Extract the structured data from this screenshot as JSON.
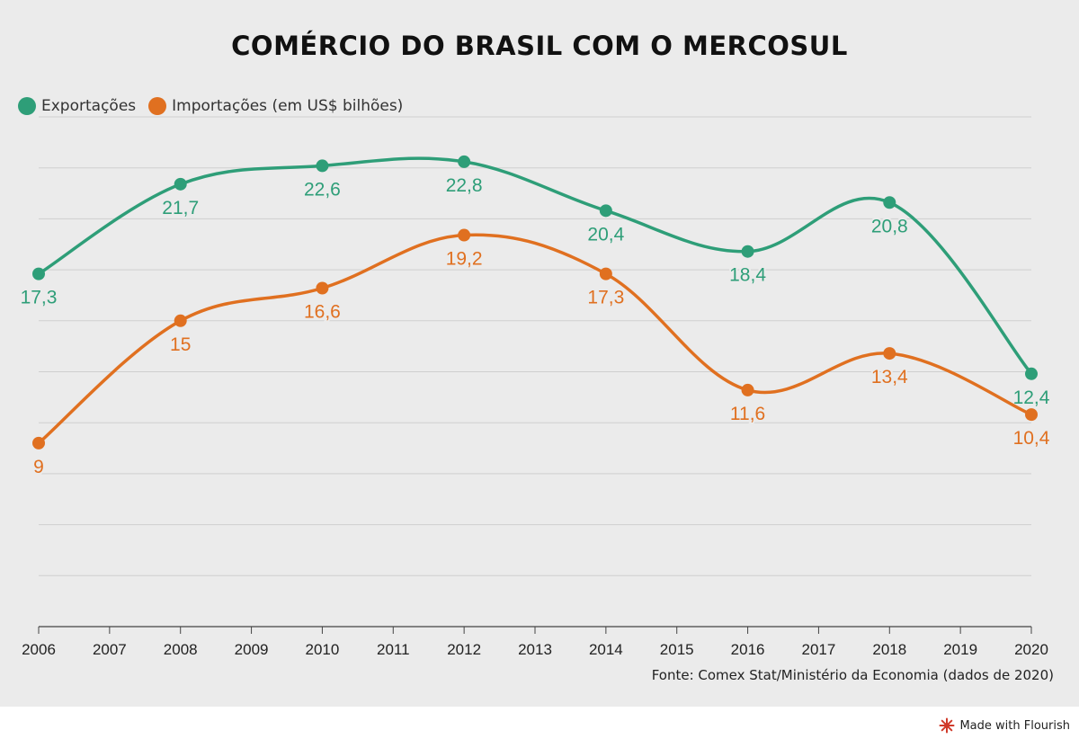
{
  "title": "COMÉRCIO DO BRASIL COM O MERCOSUL",
  "legend": {
    "exportacoes": "Exportações",
    "importacoes": "Importações (em US$ bilhões)"
  },
  "source": "Fonte: Comex Stat/Ministério da Economia (dados de 2020)",
  "footer": {
    "made_with": "Made with Flourish"
  },
  "colors": {
    "exportacoes": "#2e9e78",
    "importacoes": "#e07020",
    "grid": "#cfcfcf",
    "axis": "#444444",
    "background": "#ebebeb"
  },
  "chart_data": {
    "type": "line",
    "title": "COMÉRCIO DO BRASIL COM O MERCOSUL",
    "x_ticks": [
      "2006",
      "2007",
      "2008",
      "2009",
      "2010",
      "2011",
      "2012",
      "2013",
      "2014",
      "2015",
      "2016",
      "2017",
      "2018",
      "2019",
      "2020"
    ],
    "ylim": [
      0,
      25
    ],
    "grid": true,
    "legend_position": "top-left",
    "series": [
      {
        "key": "exportacoes",
        "name": "Exportações",
        "x": [
          2006,
          2008,
          2010,
          2012,
          2014,
          2016,
          2018,
          2020
        ],
        "values": [
          17.3,
          21.7,
          22.6,
          22.8,
          20.4,
          18.4,
          20.8,
          12.4
        ],
        "labels": [
          "17,3",
          "21,7",
          "22,6",
          "22,8",
          "20,4",
          "18,4",
          "20,8",
          "12,4"
        ]
      },
      {
        "key": "importacoes",
        "name": "Importações (em US$ bilhões)",
        "x": [
          2006,
          2008,
          2010,
          2012,
          2014,
          2016,
          2018,
          2020
        ],
        "values": [
          9,
          15,
          16.6,
          19.2,
          17.3,
          11.6,
          13.4,
          10.4
        ],
        "labels": [
          "9",
          "15",
          "16,6",
          "19,2",
          "17,3",
          "11,6",
          "13,4",
          "10,4"
        ]
      }
    ]
  }
}
